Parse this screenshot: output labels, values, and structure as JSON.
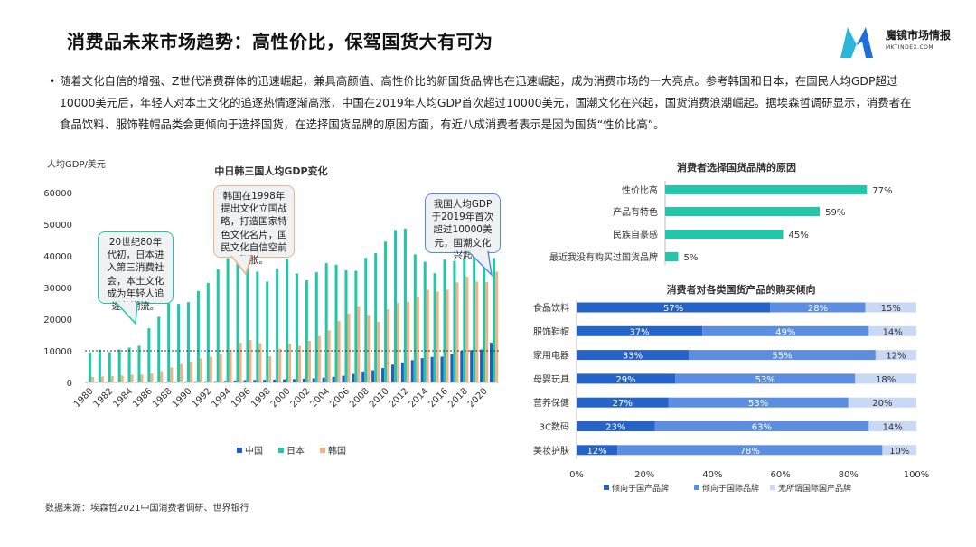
{
  "page": {
    "title": "消费品未来市场趋势：高性价比，保驾国货大有可为",
    "bullet": "随着文化自信的增强、Z世代消费群体的迅速崛起，兼具高颜值、高性价比的新国货品牌也在迅速崛起，成为消费市场的一大亮点。参考韩国和日本，在国民人均GDP超过10000美元后，年轻人对本土文化的追逐热情逐渐高涨，中国在2019年人均GDP首次超过10000美元，国潮文化在兴起，国货消费浪潮崛起。据埃森哲调研显示，消费者在食品饮料、服饰鞋帽品类会更倾向于选择国货，在选择国货品牌的原因方面，有近八成消费者表示是因为国货“性价比高”。",
    "source": "数据来源：埃森哲2021中国消费者调研、世界银行"
  },
  "logo": {
    "name": "魔镜市场情报",
    "sub": "MKTINDEX.COM"
  },
  "colors": {
    "china": "#1f5ec8",
    "japan": "#22c7a9",
    "korea": "#f5b183",
    "reason_bar": "#22c7a9",
    "domestic": "#2563c9",
    "foreign": "#5b8ee0",
    "neutral": "#c9d8f5"
  },
  "callouts": [
    "20世纪80年\n代初，日本进\n入第三消费社\n会，本土文化\n成为年轻人追\n逐的潮流。",
    "韩国在1998年\n提出文化立国战\n略，打造国家特\n色文化名片，国\n民文化自信空前\n膨胀。",
    "我国人均GDP\n于2019年首次\n超过10000美\n元，国潮文化\n兴起"
  ],
  "chart_data": [
    {
      "type": "bar",
      "title": "中日韩三国人均GDP变化",
      "ylabel": "人均GDP/美元",
      "ylim": [
        0,
        60000
      ],
      "yticks": [
        "60000",
        "50000",
        "40000",
        "30000",
        "20000",
        "10000",
        "0"
      ],
      "reference_line": 10000,
      "x": [
        1980,
        1981,
        1982,
        1983,
        1984,
        1985,
        1986,
        1987,
        1988,
        1989,
        1990,
        1991,
        1992,
        1993,
        1994,
        1995,
        1996,
        1997,
        1998,
        1999,
        2000,
        2001,
        2002,
        2003,
        2004,
        2005,
        2006,
        2007,
        2008,
        2009,
        2010,
        2011,
        2012,
        2013,
        2014,
        2015,
        2016,
        2017,
        2018,
        2019,
        2020,
        2021
      ],
      "xtick_labels": [
        "1980",
        "1982",
        "1984",
        "1986",
        "1988",
        "1990",
        "1992",
        "1994",
        "1996",
        "1998",
        "2000",
        "2002",
        "2004",
        "2006",
        "2008",
        "2010",
        "2012",
        "2014",
        "2016",
        "2018",
        "2020"
      ],
      "series": [
        {
          "name": "中国",
          "values": [
            195,
            197,
            203,
            225,
            251,
            294,
            282,
            252,
            284,
            311,
            318,
            333,
            366,
            377,
            473,
            610,
            709,
            782,
            829,
            873,
            959,
            1053,
            1149,
            1289,
            1509,
            1753,
            2099,
            2694,
            3468,
            3832,
            4550,
            5618,
            6317,
            7051,
            7679,
            8066,
            8148,
            8879,
            9977,
            10217,
            10409,
            12556
          ]
        },
        {
          "name": "日本",
          "values": [
            9465,
            10361,
            9578,
            10425,
            10984,
            11585,
            17112,
            20745,
            25051,
            24813,
            25359,
            28925,
            31465,
            35766,
            39269,
            43440,
            38437,
            35022,
            31903,
            36027,
            39169,
            34407,
            32289,
            34808,
            37689,
            37218,
            35434,
            35275,
            39339,
            40855,
            44508,
            48168,
            48603,
            40454,
            38109,
            34524,
            38794,
            38387,
            39159,
            40247,
            39918,
            39312
          ]
        },
        {
          "name": "韩国",
          "values": [
            1715,
            1883,
            1992,
            2199,
            2413,
            2482,
            2835,
            3555,
            4749,
            5818,
            6610,
            7637,
            8127,
            8885,
            10385,
            12565,
            13403,
            12398,
            8282,
            10672,
            12257,
            11561,
            13165,
            14673,
            16496,
            19403,
            21743,
            24086,
            21350,
            19144,
            23087,
            25096,
            25467,
            27178,
            29253,
            28737,
            29280,
            31601,
            33447,
            31902,
            31721,
            34998
          ]
        }
      ]
    },
    {
      "type": "bar",
      "orientation": "horizontal",
      "title": "消费者选择国货品牌的原因",
      "categories": [
        "性价比高",
        "产品有特色",
        "民族自豪感",
        "最近我没有购买过国货品牌"
      ],
      "values": [
        77,
        59,
        45,
        5
      ],
      "value_labels": [
        "77%",
        "59%",
        "45%",
        "5%"
      ]
    },
    {
      "type": "bar",
      "orientation": "horizontal",
      "stacked": true,
      "title": "消费者对各类国货产品的购买倾向",
      "categories": [
        "食品饮料",
        "服饰鞋帽",
        "家用电器",
        "母婴玩具",
        "营养保健",
        "3C数码",
        "美妆护肤"
      ],
      "xticks": [
        "0%",
        "20%",
        "40%",
        "60%",
        "80%",
        "100%"
      ],
      "xlim": [
        0,
        100
      ],
      "series": [
        {
          "name": "倾向于国产品牌",
          "values": [
            57,
            37,
            33,
            29,
            27,
            23,
            12
          ]
        },
        {
          "name": "倾向于国际品牌",
          "values": [
            28,
            49,
            55,
            53,
            53,
            63,
            78
          ]
        },
        {
          "name": "无所谓国际国产品牌",
          "values": [
            15,
            14,
            12,
            18,
            20,
            14,
            10
          ]
        }
      ]
    }
  ]
}
